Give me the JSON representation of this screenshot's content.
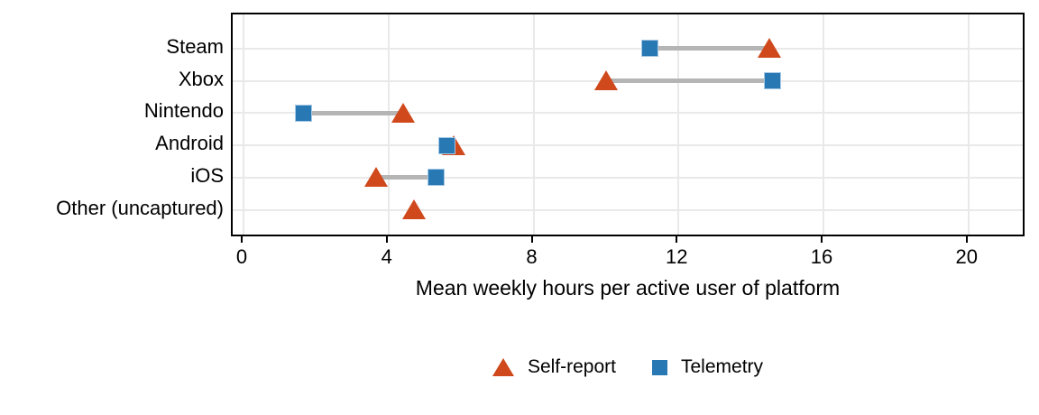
{
  "chart_data": {
    "type": "dumbbell",
    "title": "",
    "xlabel": "Mean weekly hours per active user of platform",
    "ylabel": "",
    "x_ticks": [
      0,
      4,
      8,
      12,
      16,
      20
    ],
    "xlim": [
      -0.3,
      21.6
    ],
    "grid": true,
    "legend_position": "bottom-center",
    "categories": [
      "Steam",
      "Xbox",
      "Nintendo",
      "Android",
      "iOS",
      "Other (uncaptured)"
    ],
    "series": [
      {
        "name": "Self-report",
        "marker": "triangle",
        "color": "#d0491c",
        "values": [
          14.5,
          10.0,
          4.4,
          5.8,
          3.65,
          4.7
        ]
      },
      {
        "name": "Telemetry",
        "marker": "square",
        "color": "#2878b4",
        "values": [
          11.2,
          14.6,
          1.65,
          5.6,
          5.3,
          null
        ]
      }
    ],
    "connector_color": "#b5b5b5",
    "gridline_color": "#e9e9e9",
    "axis_color": "#000000",
    "background_color": "#ffffff"
  },
  "axis": {
    "x_title": "Mean weekly hours per active user of platform"
  },
  "legend": {
    "items": [
      {
        "label": "Self-report",
        "marker": "triangle",
        "color": "#d0491c"
      },
      {
        "label": "Telemetry",
        "marker": "square",
        "color": "#2878b4"
      }
    ]
  }
}
